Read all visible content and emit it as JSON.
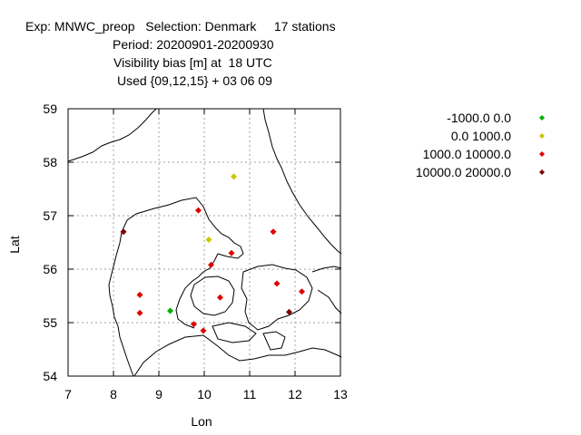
{
  "header": {
    "line1": "Exp: MNWC_preop   Selection: Denmark     17 stations",
    "line2": "Period: 20200901-20200930",
    "line3": "Visibility bias [m] at  18 UTC",
    "line4": "Used {09,12,15} + 03 06 09"
  },
  "chart_data": {
    "type": "scatter",
    "xlabel": "Lon",
    "ylabel": "Lat",
    "xlim": [
      7,
      13
    ],
    "ylim": [
      54,
      59
    ],
    "xticks": [
      7,
      8,
      9,
      10,
      11,
      12,
      13
    ],
    "yticks": [
      54,
      55,
      56,
      57,
      58,
      59
    ],
    "grid": true,
    "legend_position": "top-right",
    "series": [
      {
        "name": "-1000.0 0.0",
        "color": "#00b000",
        "points": [
          [
            9.25,
            55.22
          ]
        ]
      },
      {
        "name": "0.0 1000.0",
        "color": "#c8c800",
        "points": [
          [
            10.65,
            57.73
          ],
          [
            10.1,
            56.55
          ]
        ]
      },
      {
        "name": "1000.0 10000.0",
        "color": "#e00000",
        "points": [
          [
            9.87,
            57.1
          ],
          [
            11.52,
            56.7
          ],
          [
            10.6,
            56.3
          ],
          [
            10.15,
            56.08
          ],
          [
            8.58,
            55.52
          ],
          [
            8.58,
            55.18
          ],
          [
            10.35,
            55.47
          ],
          [
            11.6,
            55.73
          ],
          [
            12.15,
            55.58
          ],
          [
            9.77,
            54.97
          ],
          [
            9.98,
            54.85
          ]
        ]
      },
      {
        "name": "10000.0 20000.0",
        "color": "#800000",
        "points": [
          [
            8.22,
            56.7
          ],
          [
            11.87,
            55.2
          ]
        ]
      }
    ]
  }
}
